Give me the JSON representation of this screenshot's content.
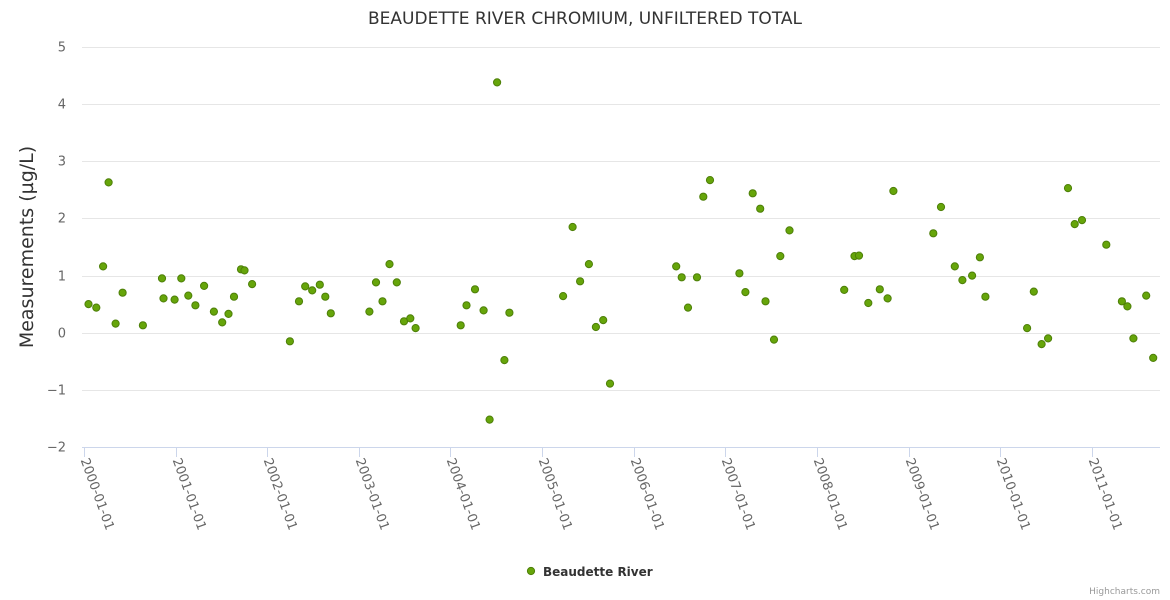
{
  "chart_data": {
    "type": "scatter",
    "title": "BEAUDETTE RIVER CHROMIUM, UNFILTERED TOTAL",
    "xlabel": "",
    "ylabel": "Measurements (µg/L)",
    "ylim": [
      -2,
      5
    ],
    "yticks": [
      -2,
      -1,
      0,
      1,
      2,
      3,
      4,
      5
    ],
    "yticklabels": [
      "−2",
      "−1",
      "0",
      "1",
      "2",
      "3",
      "4",
      "5"
    ],
    "xlim": [
      "1999-12-24",
      "2011-09-30"
    ],
    "xticks": [
      "2000-01-01",
      "2001-01-01",
      "2002-01-01",
      "2003-01-01",
      "2004-01-01",
      "2005-01-01",
      "2006-01-01",
      "2007-01-01",
      "2008-01-01",
      "2009-01-01",
      "2010-01-01",
      "2011-01-01"
    ],
    "grid": true,
    "legend": "bottom-center",
    "marker_color": "#66a50a",
    "marker_stroke": "#4d7f08",
    "series": [
      {
        "name": "Beaudette River",
        "points": [
          [
            "2000-01-19",
            0.5
          ],
          [
            "2000-02-19",
            0.44
          ],
          [
            "2000-03-17",
            1.16
          ],
          [
            "2000-04-08",
            2.63
          ],
          [
            "2000-05-06",
            0.16
          ],
          [
            "2000-06-03",
            0.7
          ],
          [
            "2000-08-23",
            0.13
          ],
          [
            "2000-11-07",
            0.95
          ],
          [
            "2000-11-13",
            0.6
          ],
          [
            "2000-12-27",
            0.58
          ],
          [
            "2001-01-23",
            0.95
          ],
          [
            "2001-02-20",
            0.65
          ],
          [
            "2001-03-20",
            0.48
          ],
          [
            "2001-04-24",
            0.82
          ],
          [
            "2001-06-02",
            0.37
          ],
          [
            "2001-07-05",
            0.18
          ],
          [
            "2001-07-30",
            0.33
          ],
          [
            "2001-08-21",
            0.63
          ],
          [
            "2001-09-18",
            1.11
          ],
          [
            "2001-10-02",
            1.09
          ],
          [
            "2001-11-01",
            0.85
          ],
          [
            "2002-04-01",
            -0.15
          ],
          [
            "2002-05-07",
            0.55
          ],
          [
            "2002-06-01",
            0.81
          ],
          [
            "2002-06-29",
            0.74
          ],
          [
            "2002-07-29",
            0.84
          ],
          [
            "2002-08-20",
            0.63
          ],
          [
            "2002-09-11",
            0.34
          ],
          [
            "2003-02-12",
            0.37
          ],
          [
            "2003-03-10",
            0.88
          ],
          [
            "2003-04-05",
            0.55
          ],
          [
            "2003-05-03",
            1.2
          ],
          [
            "2003-06-01",
            0.88
          ],
          [
            "2003-06-30",
            0.2
          ],
          [
            "2003-07-25",
            0.25
          ],
          [
            "2003-08-15",
            0.08
          ],
          [
            "2004-02-11",
            0.13
          ],
          [
            "2004-03-05",
            0.48
          ],
          [
            "2004-04-08",
            0.76
          ],
          [
            "2004-05-12",
            0.39
          ],
          [
            "2004-06-05",
            -1.52
          ],
          [
            "2004-07-05",
            4.38
          ],
          [
            "2004-08-03",
            -0.48
          ],
          [
            "2004-08-23",
            0.35
          ],
          [
            "2005-03-25",
            0.64
          ],
          [
            "2005-05-02",
            1.85
          ],
          [
            "2005-06-01",
            0.9
          ],
          [
            "2005-07-06",
            1.2
          ],
          [
            "2005-08-03",
            0.1
          ],
          [
            "2005-09-01",
            0.22
          ],
          [
            "2005-09-28",
            -0.89
          ],
          [
            "2006-06-19",
            1.16
          ],
          [
            "2006-07-11",
            0.97
          ],
          [
            "2006-08-05",
            0.44
          ],
          [
            "2006-09-10",
            0.97
          ],
          [
            "2006-10-05",
            2.38
          ],
          [
            "2006-11-01",
            2.67
          ],
          [
            "2007-02-26",
            1.04
          ],
          [
            "2007-03-22",
            0.71
          ],
          [
            "2007-04-20",
            2.44
          ],
          [
            "2007-05-20",
            2.17
          ],
          [
            "2007-06-10",
            0.55
          ],
          [
            "2007-07-14",
            -0.12
          ],
          [
            "2007-08-08",
            1.34
          ],
          [
            "2007-09-14",
            1.79
          ],
          [
            "2008-04-19",
            0.75
          ],
          [
            "2008-05-30",
            1.34
          ],
          [
            "2008-06-17",
            1.35
          ],
          [
            "2008-07-24",
            0.52
          ],
          [
            "2008-09-08",
            0.76
          ],
          [
            "2008-10-09",
            0.6
          ],
          [
            "2008-11-01",
            2.48
          ],
          [
            "2009-04-09",
            1.74
          ],
          [
            "2009-05-10",
            2.2
          ],
          [
            "2009-07-04",
            1.16
          ],
          [
            "2009-08-03",
            0.92
          ],
          [
            "2009-09-11",
            1.0
          ],
          [
            "2009-10-12",
            1.32
          ],
          [
            "2009-11-03",
            0.63
          ],
          [
            "2010-04-18",
            0.08
          ],
          [
            "2010-05-15",
            0.72
          ],
          [
            "2010-06-15",
            -0.2
          ],
          [
            "2010-07-11",
            -0.1
          ],
          [
            "2010-09-28",
            2.53
          ],
          [
            "2010-10-25",
            1.9
          ],
          [
            "2010-11-23",
            1.97
          ],
          [
            "2011-02-28",
            1.54
          ],
          [
            "2011-05-01",
            0.55
          ],
          [
            "2011-05-23",
            0.46
          ],
          [
            "2011-06-16",
            -0.1
          ],
          [
            "2011-08-06",
            0.65
          ],
          [
            "2011-09-03",
            -0.44
          ]
        ]
      }
    ]
  },
  "credits": "Highcharts.com"
}
